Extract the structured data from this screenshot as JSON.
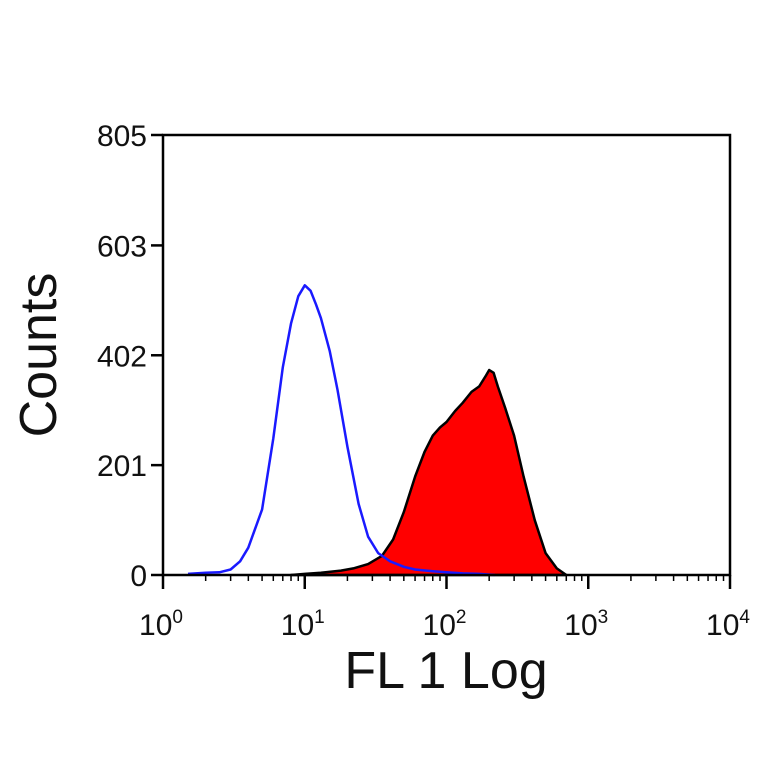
{
  "chart_data": {
    "type": "area",
    "title": "",
    "xlabel": "FL 1 Log",
    "ylabel": "Counts",
    "x_scale": "log",
    "xlim": [
      1,
      10000
    ],
    "ylim": [
      0,
      805
    ],
    "x_ticks": [
      {
        "value": 1,
        "base": "10",
        "exp": "0"
      },
      {
        "value": 10,
        "base": "10",
        "exp": "1"
      },
      {
        "value": 100,
        "base": "10",
        "exp": "2"
      },
      {
        "value": 1000,
        "base": "10",
        "exp": "3"
      },
      {
        "value": 10000,
        "base": "10",
        "exp": "4"
      }
    ],
    "y_ticks": [
      {
        "value": 0,
        "label": "0"
      },
      {
        "value": 201,
        "label": "201"
      },
      {
        "value": 402,
        "label": "402"
      },
      {
        "value": 603,
        "label": "603"
      },
      {
        "value": 805,
        "label": "805"
      }
    ],
    "grid": false,
    "legend": "none",
    "series": [
      {
        "style": "filled",
        "color": "#ff0000",
        "outline": "#000000",
        "x": [
          8,
          10,
          13,
          18,
          22,
          28,
          35,
          42,
          50,
          60,
          70,
          80,
          90,
          100,
          115,
          130,
          150,
          170,
          190,
          200,
          215,
          230,
          260,
          300,
          350,
          420,
          500,
          600,
          700
        ],
        "y": [
          0,
          2,
          4,
          8,
          12,
          20,
          35,
          65,
          115,
          180,
          225,
          255,
          270,
          280,
          300,
          315,
          335,
          345,
          365,
          375,
          370,
          345,
          305,
          255,
          180,
          100,
          40,
          12,
          0
        ]
      },
      {
        "style": "line",
        "color": "#1a1aff",
        "x": [
          1.5,
          2,
          2.5,
          3,
          3.5,
          4,
          5,
          6,
          7,
          8,
          9,
          10,
          11,
          12,
          13,
          15,
          17,
          20,
          24,
          28,
          33,
          40,
          50,
          60,
          80,
          100,
          130,
          170,
          220
        ],
        "y": [
          2,
          4,
          5,
          10,
          25,
          50,
          120,
          250,
          380,
          460,
          510,
          530,
          520,
          495,
          470,
          410,
          340,
          235,
          130,
          70,
          40,
          25,
          15,
          10,
          7,
          5,
          3,
          2,
          0
        ]
      }
    ]
  }
}
